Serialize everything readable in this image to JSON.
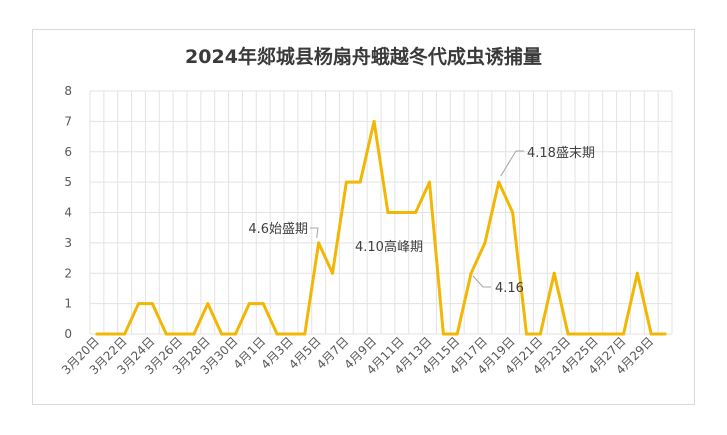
{
  "chart_data": {
    "type": "line",
    "title": "2024年郯城县杨扇舟蛾越冬代成虫诱捕量",
    "xlabel": "",
    "ylabel": "",
    "ylim": [
      0,
      8
    ],
    "yticks": [
      0,
      1,
      2,
      3,
      4,
      5,
      6,
      7,
      8
    ],
    "grid": true,
    "legend": "none",
    "line_color": "#F2B705",
    "x_tick_labels": [
      "3月20日",
      "3月22日",
      "3月24日",
      "3月26日",
      "3月28日",
      "3月30日",
      "4月1日",
      "4月3日",
      "4月5日",
      "4月7日",
      "4月9日",
      "4月11日",
      "4月13日",
      "4月15日",
      "4月17日",
      "4月19日",
      "4月21日",
      "4月23日",
      "4月25日",
      "4月27日",
      "4月29日"
    ],
    "x": [
      "3月20日",
      "3月21日",
      "3月22日",
      "3月23日",
      "3月24日",
      "3月25日",
      "3月26日",
      "3月27日",
      "3月28日",
      "3月29日",
      "3月30日",
      "3月31日",
      "4月1日",
      "4月2日",
      "4月3日",
      "4月4日",
      "4月5日",
      "4月6日",
      "4月7日",
      "4月8日",
      "4月9日",
      "4月10日",
      "4月11日",
      "4月12日",
      "4月13日",
      "4月14日",
      "4月15日",
      "4月16日",
      "4月17日",
      "4月18日",
      "4月19日",
      "4月20日",
      "4月21日",
      "4月22日",
      "4月23日",
      "4月24日",
      "4月25日",
      "4月26日",
      "4月27日",
      "4月28日",
      "4月29日",
      "4月30日"
    ],
    "series": [
      {
        "values": [
          0,
          0,
          0,
          1,
          1,
          0,
          0,
          0,
          1,
          0,
          0,
          1,
          1,
          0,
          0,
          0,
          3,
          2,
          5,
          5,
          7,
          4,
          4,
          4,
          5,
          0,
          0,
          2,
          3,
          5,
          4,
          0,
          0,
          2,
          0,
          0,
          0,
          0,
          0,
          2,
          0,
          0
        ]
      }
    ],
    "annotations": [
      {
        "text": "4.6始盛期",
        "x": "4月6日",
        "y": 3
      },
      {
        "text": "4.10高峰期",
        "x": "4月10日",
        "y": 4
      },
      {
        "text": "4.16",
        "x": "4月16日",
        "y": 2
      },
      {
        "text": "4.18盛末期",
        "x": "4月18日",
        "y": 5
      }
    ]
  }
}
